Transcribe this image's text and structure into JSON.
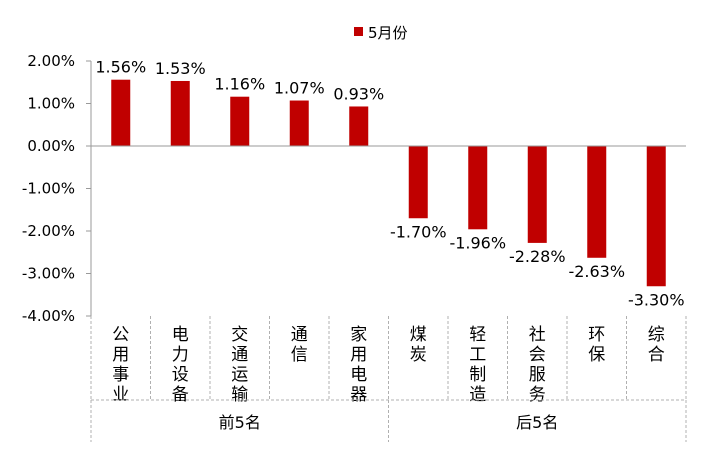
{
  "chart_data": {
    "type": "bar",
    "legend": {
      "position": "top",
      "entries": [
        "5月份"
      ]
    },
    "series": [
      {
        "name": "5月份",
        "color": "#C00000",
        "values": [
          1.56,
          1.53,
          1.16,
          1.07,
          0.93,
          -1.7,
          -1.96,
          -2.28,
          -2.63,
          -3.3
        ]
      }
    ],
    "categories": [
      "公用事业",
      "电力设备",
      "交通运输",
      "通信",
      "家用电器",
      "煤炭",
      "轻工制造",
      "社会服务",
      "环保",
      "综合"
    ],
    "data_labels": [
      "1.56%",
      "1.53%",
      "1.16%",
      "1.07%",
      "0.93%",
      "-1.70%",
      "-1.96%",
      "-2.28%",
      "-2.63%",
      "-3.30%"
    ],
    "groups": [
      {
        "label": "前5名",
        "count": 5
      },
      {
        "label": "后5名",
        "count": 5
      }
    ],
    "y_ticks": [
      "2.00%",
      "1.00%",
      "0.00%",
      "-1.00%",
      "-2.00%",
      "-3.00%",
      "-4.00%"
    ],
    "ylim": [
      -4,
      2
    ],
    "unit": "%",
    "grid": false,
    "title": "",
    "xlabel": "",
    "ylabel": ""
  }
}
